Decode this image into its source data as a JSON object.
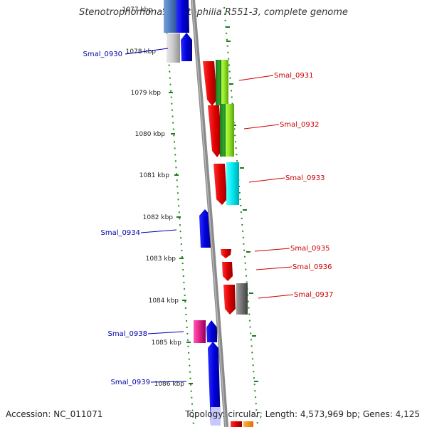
{
  "title": "Stenotrophomonas maltophilia R551-3, complete genome",
  "accession": "Accession: NC_011071",
  "topology": "Topology: circular; Length: 4,573,969 bp; Genes: 4,125",
  "kbp_labels": [
    "1077 kbp",
    "1078 kbp",
    "1079 kbp",
    "1080 kbp",
    "1081 kbp",
    "1082 kbp",
    "1083 kbp",
    "1084 kbp",
    "1085 kbp",
    "1086 kbp"
  ],
  "genes": [
    {
      "name": "Smal_0930",
      "strand": "minus",
      "color": "#0000cc"
    },
    {
      "name": "Smal_0931",
      "strand": "plus",
      "color": "#cc0000"
    },
    {
      "name": "Smal_0932",
      "strand": "plus",
      "color": "#cc0000"
    },
    {
      "name": "Smal_0933",
      "strand": "plus",
      "color": "#cc0000"
    },
    {
      "name": "Smal_0934",
      "strand": "minus",
      "color": "#0000cc"
    },
    {
      "name": "Smal_0935",
      "strand": "plus",
      "color": "#cc0000"
    },
    {
      "name": "Smal_0936",
      "strand": "plus",
      "color": "#cc0000"
    },
    {
      "name": "Smal_0937",
      "strand": "plus",
      "color": "#cc0000"
    },
    {
      "name": "Smal_0938",
      "strand": "minus",
      "color": "#0000cc"
    },
    {
      "name": "Smal_0939",
      "strand": "minus",
      "color": "#0000cc"
    }
  ]
}
